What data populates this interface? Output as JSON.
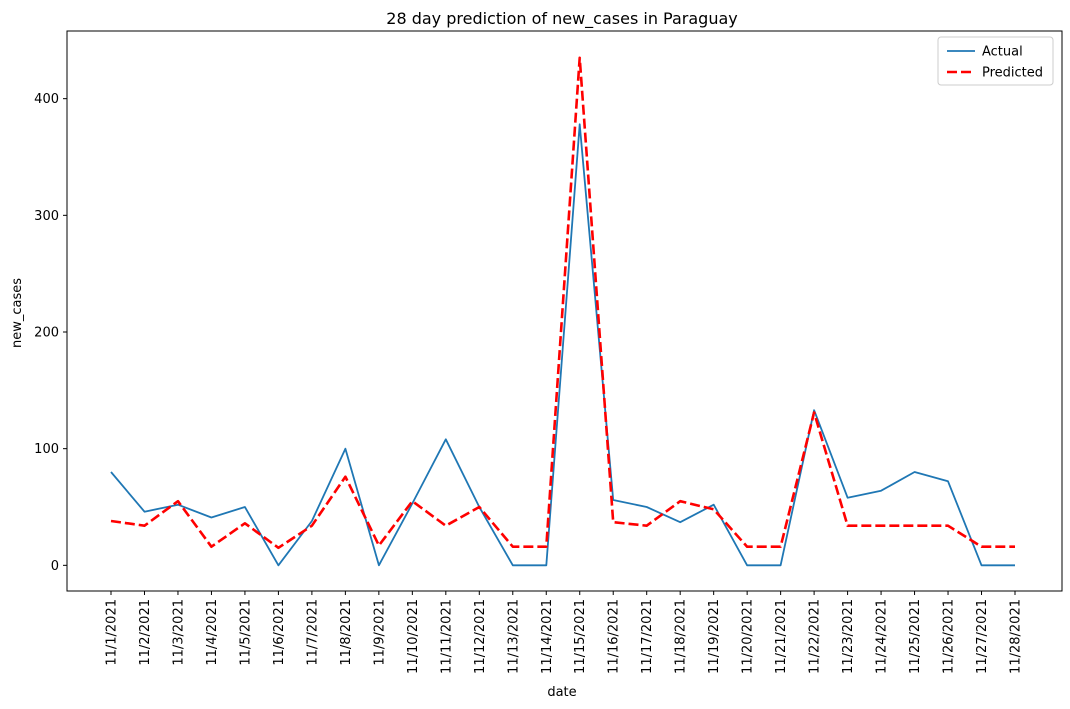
{
  "chart_data": {
    "type": "line",
    "title": "28 day prediction of new_cases in Paraguay",
    "xlabel": "date",
    "ylabel": "new_cases",
    "categories": [
      "11/1/2021",
      "11/2/2021",
      "11/3/2021",
      "11/4/2021",
      "11/5/2021",
      "11/6/2021",
      "11/7/2021",
      "11/8/2021",
      "11/9/2021",
      "11/10/2021",
      "11/11/2021",
      "11/12/2021",
      "11/13/2021",
      "11/14/2021",
      "11/15/2021",
      "11/16/2021",
      "11/17/2021",
      "11/18/2021",
      "11/19/2021",
      "11/20/2021",
      "11/21/2021",
      "11/22/2021",
      "11/23/2021",
      "11/24/2021",
      "11/25/2021",
      "11/26/2021",
      "11/27/2021",
      "11/28/2021"
    ],
    "series": [
      {
        "name": "Actual",
        "color": "#1f77b4",
        "style": "solid",
        "values": [
          80,
          46,
          52,
          41,
          50,
          0,
          38,
          100,
          0,
          53,
          108,
          50,
          0,
          0,
          378,
          56,
          50,
          37,
          52,
          0,
          0,
          133,
          58,
          64,
          80,
          72,
          0,
          0
        ]
      },
      {
        "name": "Predicted",
        "color": "#ff0000",
        "style": "dashed",
        "values": [
          38,
          34,
          55,
          16,
          36,
          15,
          34,
          76,
          17,
          55,
          34,
          50,
          16,
          16,
          435,
          37,
          34,
          55,
          48,
          16,
          16,
          131,
          34,
          34,
          34,
          34,
          16,
          16
        ]
      }
    ],
    "yticks": [
      0,
      100,
      200,
      300,
      400
    ],
    "ylim": [
      -22,
      458
    ],
    "legend": "upper-right",
    "grid": false
  }
}
